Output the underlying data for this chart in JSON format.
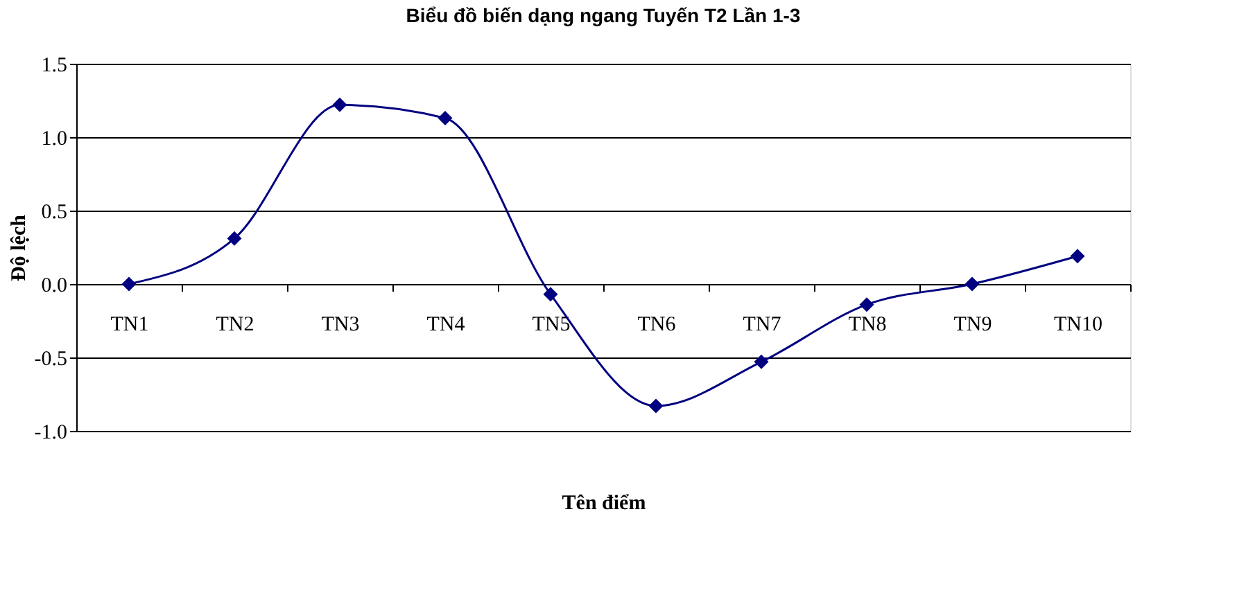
{
  "chart_data": {
    "type": "line",
    "title": "Biểu đồ biến dạng ngang Tuyến T2    Lần 1-3",
    "xlabel": "Tên điểm",
    "ylabel": "Độ lệch",
    "categories": [
      "TN1",
      "TN2",
      "TN3",
      "TN4",
      "TN5",
      "TN6",
      "TN7",
      "TN8",
      "TN9",
      "TN10"
    ],
    "series": [
      {
        "color": "#000080",
        "values": [
          0.0,
          0.31,
          1.22,
          1.13,
          -0.07,
          -0.83,
          -0.53,
          -0.14,
          0.0,
          0.19
        ]
      }
    ],
    "ylim": [
      -1.0,
      1.5
    ],
    "yticks": [
      {
        "value": -1.0,
        "label": "-1.0"
      },
      {
        "value": -0.5,
        "label": "-0.5"
      },
      {
        "value": 0.0,
        "label": "0.0"
      },
      {
        "value": 0.5,
        "label": "0.5"
      },
      {
        "value": 1.0,
        "label": "1.0"
      },
      {
        "value": 1.5,
        "label": "1.5"
      }
    ],
    "grid": "y",
    "marker": "diamond",
    "line_style": "solid"
  }
}
